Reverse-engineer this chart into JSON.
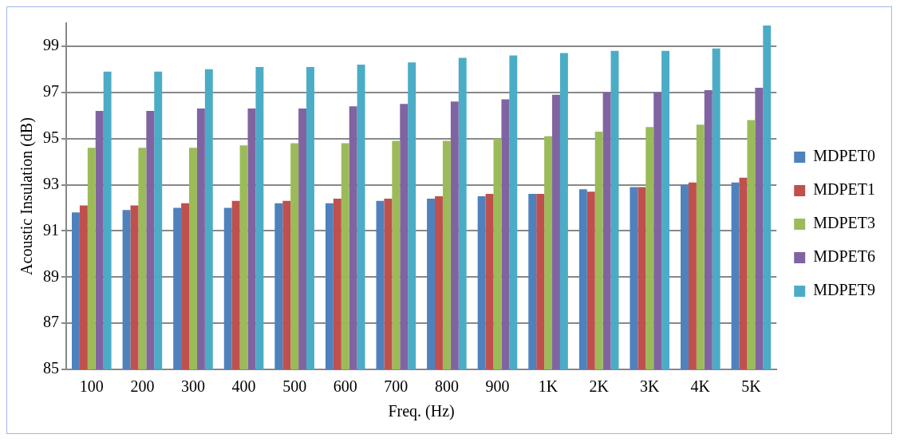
{
  "chart_data": {
    "type": "bar",
    "xlabel": "Freq. (Hz)",
    "ylabel": "Acoustic Insulation (dB)",
    "categories": [
      "100",
      "200",
      "300",
      "400",
      "500",
      "600",
      "700",
      "800",
      "900",
      "1K",
      "2K",
      "3K",
      "4K",
      "5K"
    ],
    "series": [
      {
        "name": "MDPET0",
        "color": "#4f81bd",
        "values": [
          91.8,
          91.9,
          92.0,
          92.0,
          92.2,
          92.2,
          92.3,
          92.4,
          92.5,
          92.6,
          92.8,
          92.9,
          93.0,
          93.1
        ]
      },
      {
        "name": "MDPET1",
        "color": "#c0504d",
        "values": [
          92.1,
          92.1,
          92.2,
          92.3,
          92.3,
          92.4,
          92.4,
          92.5,
          92.6,
          92.6,
          92.7,
          92.9,
          93.1,
          93.3
        ]
      },
      {
        "name": "MDPET3",
        "color": "#9bbb59",
        "values": [
          94.6,
          94.6,
          94.6,
          94.7,
          94.8,
          94.8,
          94.9,
          94.9,
          95.0,
          95.1,
          95.3,
          95.5,
          95.6,
          95.8
        ]
      },
      {
        "name": "MDPET6",
        "color": "#8064a2",
        "values": [
          96.2,
          96.2,
          96.3,
          96.3,
          96.3,
          96.4,
          96.5,
          96.6,
          96.7,
          96.9,
          97.0,
          97.0,
          97.1,
          97.2
        ]
      },
      {
        "name": "MDPET9",
        "color": "#4bacc6",
        "values": [
          97.9,
          97.9,
          98.0,
          98.1,
          98.1,
          98.2,
          98.3,
          98.5,
          98.6,
          98.7,
          98.8,
          98.8,
          98.9,
          99.9
        ]
      }
    ],
    "ylim": [
      85,
      100
    ],
    "yticks": [
      85,
      87,
      89,
      91,
      93,
      95,
      97,
      99
    ],
    "grid": "y",
    "legend": "right"
  }
}
